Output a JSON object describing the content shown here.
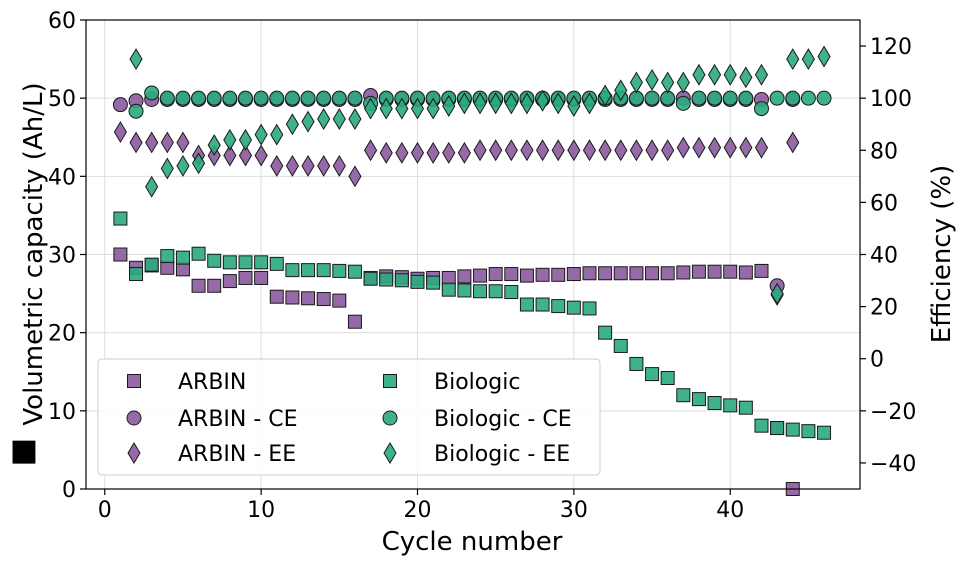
{
  "chart_data": {
    "type": "scatter",
    "xlabel": "Cycle number",
    "ylabel": "Volumetric capacity (Ah/L)",
    "ylabel_marker": "■",
    "y2label": "Efficiency (%)",
    "xlim": [
      -1.2,
      48.3
    ],
    "ylim": [
      0,
      60
    ],
    "y2lim": [
      -50,
      130
    ],
    "xticks": [
      0,
      10,
      20,
      30,
      40
    ],
    "yticks": [
      0,
      10,
      20,
      30,
      40,
      50,
      60
    ],
    "y2ticks": [
      -40,
      -20,
      0,
      20,
      40,
      60,
      80,
      100,
      120
    ],
    "y2tick_labels": [
      "−40",
      "−20",
      "0",
      "20",
      "40",
      "60",
      "80",
      "100",
      "120"
    ],
    "grid": true,
    "legend_position": "lower-left",
    "series": [
      {
        "name": "ARBIN",
        "marker": "square",
        "color": "#8b5a9e",
        "axis": "left",
        "x": [
          1,
          2,
          3,
          4,
          5,
          6,
          7,
          8,
          9,
          10,
          11,
          12,
          13,
          14,
          15,
          16,
          17,
          18,
          19,
          20,
          21,
          22,
          23,
          24,
          25,
          26,
          27,
          28,
          29,
          30,
          31,
          32,
          33,
          34,
          35,
          36,
          37,
          38,
          39,
          40,
          41,
          42,
          43,
          44
        ],
        "y": [
          30,
          28.3,
          28.6,
          28.3,
          28.1,
          26,
          26,
          26.6,
          27,
          27,
          24.6,
          24.5,
          24.4,
          24.3,
          24.1,
          21.4,
          27,
          27.2,
          27.1,
          26.9,
          27,
          27,
          27.2,
          27.3,
          27.5,
          27.5,
          27.3,
          27.4,
          27.4,
          27.5,
          27.6,
          27.6,
          27.6,
          27.6,
          27.6,
          27.6,
          27.7,
          27.8,
          27.8,
          27.8,
          27.7,
          27.9,
          7.8,
          0
        ]
      },
      {
        "name": "ARBIN - CE",
        "marker": "circle",
        "color": "#8b5a9e",
        "axis": "right",
        "x": [
          1,
          2,
          3,
          4,
          5,
          6,
          7,
          8,
          9,
          10,
          11,
          12,
          13,
          14,
          15,
          16,
          17,
          18,
          19,
          20,
          21,
          22,
          23,
          24,
          25,
          26,
          27,
          28,
          29,
          30,
          31,
          32,
          33,
          34,
          35,
          36,
          37,
          38,
          39,
          40,
          41,
          42,
          43,
          44
        ],
        "y": [
          97.5,
          99,
          99.5,
          99.5,
          99.5,
          99.5,
          99.5,
          99.5,
          99.5,
          99.5,
          99.5,
          99.5,
          99.5,
          99.5,
          99.5,
          99.5,
          101,
          99.5,
          99.5,
          99.5,
          99.5,
          99.5,
          99.5,
          99.5,
          99.5,
          99.5,
          99.5,
          99.5,
          99.5,
          99.5,
          99.5,
          99.5,
          99.5,
          99.5,
          99.5,
          99.5,
          100,
          99.5,
          99.5,
          99.5,
          99.5,
          99.5,
          28,
          99.5
        ]
      },
      {
        "name": "ARBIN - EE",
        "marker": "diamond",
        "color": "#8b5a9e",
        "axis": "right",
        "x": [
          1,
          2,
          3,
          4,
          5,
          6,
          7,
          8,
          9,
          10,
          11,
          12,
          13,
          14,
          15,
          16,
          17,
          18,
          19,
          20,
          21,
          22,
          23,
          24,
          25,
          26,
          27,
          28,
          29,
          30,
          31,
          32,
          33,
          34,
          35,
          36,
          37,
          38,
          39,
          40,
          41,
          42,
          43,
          44
        ],
        "y": [
          87,
          83,
          83,
          83,
          83,
          78,
          78,
          78,
          78,
          78,
          74,
          74,
          74,
          74,
          74,
          70,
          80,
          79,
          79,
          79,
          79,
          79,
          79,
          80,
          80,
          80,
          80,
          80,
          80,
          80,
          80,
          80,
          80,
          80,
          80,
          80,
          81,
          81,
          81,
          81,
          81,
          81,
          24.5,
          83
        ]
      },
      {
        "name": "Biologic",
        "marker": "square",
        "color": "#2aaa7f",
        "axis": "left",
        "x": [
          1,
          2,
          3,
          4,
          5,
          6,
          7,
          8,
          9,
          10,
          11,
          12,
          13,
          14,
          15,
          16,
          17,
          18,
          19,
          20,
          21,
          22,
          23,
          24,
          25,
          26,
          27,
          28,
          29,
          30,
          31,
          32,
          33,
          34,
          35,
          36,
          37,
          38,
          39,
          40,
          41,
          42,
          43,
          44,
          45,
          46
        ],
        "y": [
          34.6,
          27.5,
          28.7,
          29.8,
          29.6,
          30.1,
          29.2,
          29,
          29,
          29,
          28.8,
          28,
          28,
          28,
          27.9,
          27.8,
          26.9,
          26.8,
          26.7,
          26.5,
          26.4,
          25.5,
          25.4,
          25.3,
          25.3,
          25.2,
          23.6,
          23.6,
          23.4,
          23.2,
          23.1,
          20,
          18.3,
          16,
          14.7,
          14.2,
          12,
          11.5,
          11,
          10.7,
          10.4,
          8.1,
          7.8,
          7.6,
          7.4,
          7.2
        ]
      },
      {
        "name": "Biologic - CE",
        "marker": "circle",
        "color": "#2aaa7f",
        "axis": "right",
        "x": [
          2,
          3,
          4,
          5,
          6,
          7,
          8,
          9,
          10,
          11,
          12,
          13,
          14,
          15,
          16,
          17,
          18,
          19,
          20,
          21,
          22,
          23,
          24,
          25,
          26,
          27,
          28,
          29,
          30,
          31,
          32,
          33,
          34,
          35,
          36,
          37,
          38,
          39,
          40,
          41,
          42,
          43,
          44,
          45,
          46
        ],
        "y": [
          95,
          102,
          100,
          100,
          100,
          100,
          100,
          100,
          100,
          100,
          100,
          100,
          100,
          100,
          100,
          98,
          100,
          100,
          100,
          100,
          100,
          100,
          100,
          100,
          100,
          100,
          100,
          100,
          100,
          100,
          100,
          100,
          100,
          100,
          100,
          98,
          100,
          100,
          100,
          100,
          96,
          100,
          100,
          100,
          100
        ]
      },
      {
        "name": "Biologic - EE",
        "marker": "diamond",
        "color": "#2aaa7f",
        "axis": "right",
        "x": [
          2,
          3,
          4,
          5,
          6,
          7,
          8,
          9,
          10,
          11,
          12,
          13,
          14,
          15,
          16,
          17,
          18,
          19,
          20,
          21,
          22,
          23,
          24,
          25,
          26,
          27,
          28,
          29,
          30,
          31,
          32,
          33,
          34,
          35,
          36,
          37,
          38,
          39,
          40,
          41,
          42,
          43,
          44,
          45,
          46
        ],
        "y": [
          115,
          66,
          73,
          74,
          75,
          82,
          84,
          84,
          86,
          86,
          90,
          91,
          92,
          92,
          92,
          96,
          96,
          96,
          96,
          96,
          97,
          98,
          98,
          98,
          98,
          98,
          99,
          98,
          97,
          98,
          101,
          103,
          106,
          107,
          106,
          106,
          109,
          109,
          109,
          108,
          109,
          25,
          115,
          115,
          116
        ]
      }
    ]
  }
}
